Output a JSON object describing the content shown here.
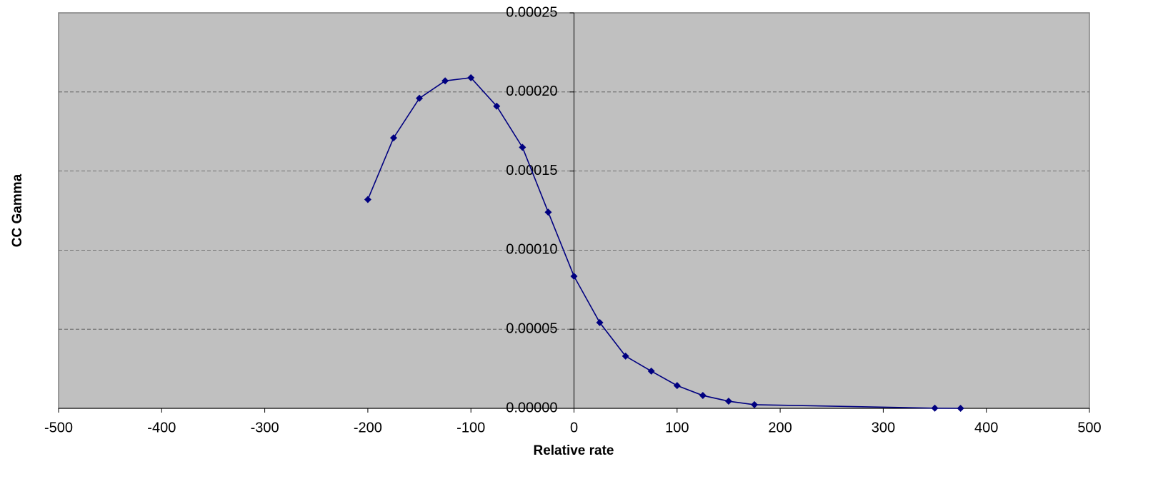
{
  "chart_data": {
    "type": "line",
    "x_label": "Relative rate",
    "y_label": "CC Gamma",
    "x": [
      -200,
      -175,
      -150,
      -125,
      -100,
      -75,
      -50,
      -25,
      0,
      25,
      50,
      75,
      100,
      125,
      150,
      175,
      350,
      375
    ],
    "series": [
      {
        "color": "#000080",
        "values": [
          0.000132,
          0.000171,
          0.000196,
          0.000207,
          0.000209,
          0.000191,
          0.000165,
          0.000124,
          8.35e-05,
          5.42e-05,
          3.3e-05,
          2.35e-05,
          1.44e-05,
          8.1e-06,
          4.5e-06,
          2.3e-06,
          1e-07,
          0
        ]
      }
    ],
    "xlim": [
      -500,
      500
    ],
    "xticks": [
      -500,
      -400,
      -300,
      -200,
      -100,
      0,
      100,
      200,
      300,
      400,
      500
    ],
    "ylim": [
      0,
      0.00025
    ],
    "yticks": [
      {
        "value": 0,
        "label": "0.00000"
      },
      {
        "value": 5e-05,
        "label": "0.00005"
      },
      {
        "value": 0.0001,
        "label": "0.00010"
      },
      {
        "value": 0.00015,
        "label": "0.00015"
      },
      {
        "value": 0.0002,
        "label": "0.00020"
      },
      {
        "value": 0.00025,
        "label": "0.00025"
      }
    ],
    "grid": true,
    "plot_background": "#c0c0c0"
  }
}
